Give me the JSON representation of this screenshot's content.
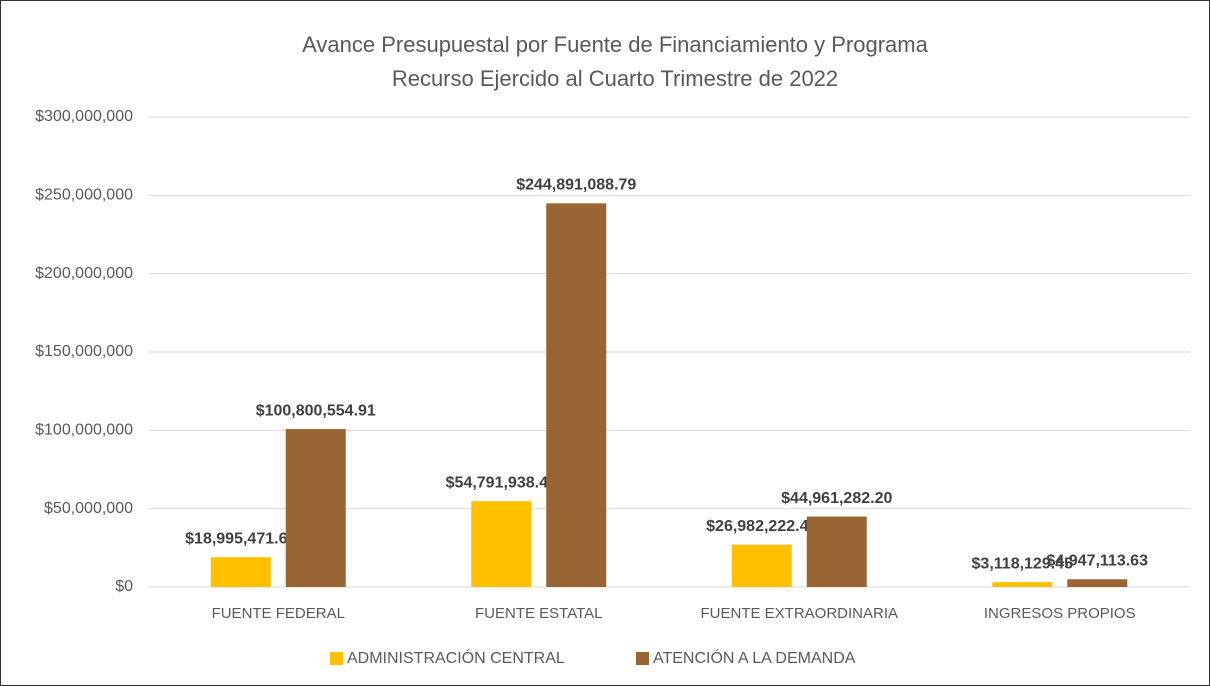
{
  "chart_data": {
    "type": "bar",
    "title": "Avance Presupuestal por Fuente de Financiamiento y Programa",
    "subtitle": "Recurso Ejercido al Cuarto Trimestre de 2022",
    "categories": [
      "FUENTE FEDERAL",
      "FUENTE ESTATAL",
      "FUENTE EXTRAORDINARIA",
      "INGRESOS PROPIOS"
    ],
    "series": [
      {
        "name": "ADMINISTRACIÓN CENTRAL",
        "color": "#ffc000",
        "values": [
          18995471.66,
          54791938.43,
          26982222.46,
          3118129.45
        ],
        "value_labels": [
          "$18,995,471.66",
          "$54,791,938.43",
          "$26,982,222.46",
          "$3,118,129.45"
        ]
      },
      {
        "name": "ATENCIÓN A LA DEMANDA",
        "color": "#996633",
        "values": [
          100800554.91,
          244891088.79,
          44961282.2,
          4947113.63
        ],
        "value_labels": [
          "$100,800,554.91",
          "$244,891,088.79",
          "$44,961,282.20",
          "$4,947,113.63"
        ]
      }
    ],
    "ylim": [
      0,
      300000000
    ],
    "yticks": [
      {
        "value": 0,
        "label": "$0"
      },
      {
        "value": 50000000,
        "label": "$50,000,000"
      },
      {
        "value": 100000000,
        "label": "$100,000,000"
      },
      {
        "value": 150000000,
        "label": "$150,000,000"
      },
      {
        "value": 200000000,
        "label": "$200,000,000"
      },
      {
        "value": 250000000,
        "label": "$250,000,000"
      },
      {
        "value": 300000000,
        "label": "$300,000,000"
      }
    ],
    "grid": true,
    "legend": "bottom"
  }
}
